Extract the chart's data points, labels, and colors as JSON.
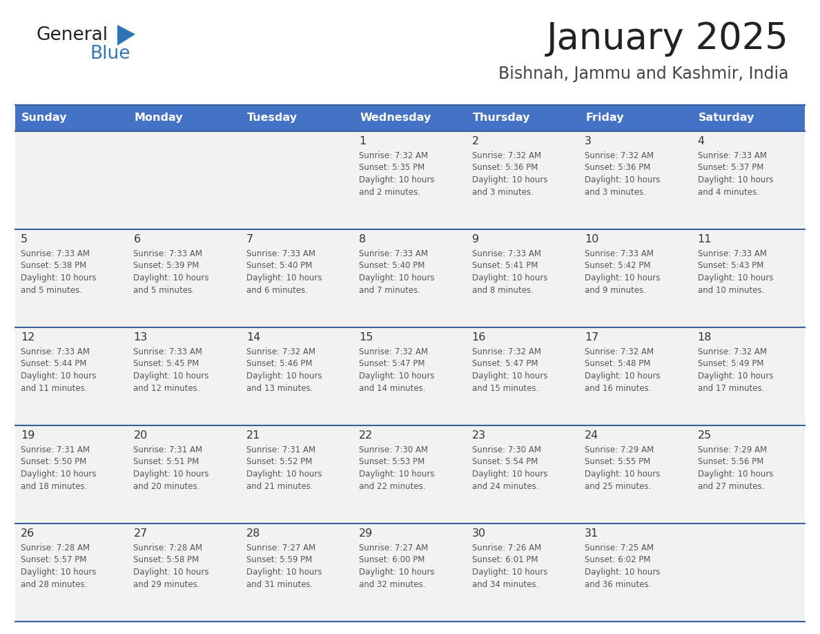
{
  "title": "January 2025",
  "subtitle": "Bishnah, Jammu and Kashmir, India",
  "days_of_week": [
    "Sunday",
    "Monday",
    "Tuesday",
    "Wednesday",
    "Thursday",
    "Friday",
    "Saturday"
  ],
  "header_bg": "#4472C4",
  "header_text": "#FFFFFF",
  "cell_bg": "#F2F2F2",
  "divider_color": "#3A5E9E",
  "title_color": "#222222",
  "subtitle_color": "#444444",
  "day_num_color": "#333333",
  "cell_text_color": "#555555",
  "logo_black": "#222222",
  "logo_blue": "#2E75B6",
  "triangle_color": "#2E75B6",
  "calendar_data": [
    [
      {
        "day": "",
        "sunrise": "",
        "sunset": "",
        "daylight": ""
      },
      {
        "day": "",
        "sunrise": "",
        "sunset": "",
        "daylight": ""
      },
      {
        "day": "",
        "sunrise": "",
        "sunset": "",
        "daylight": ""
      },
      {
        "day": "1",
        "sunrise": "Sunrise: 7:32 AM",
        "sunset": "Sunset: 5:35 PM",
        "daylight": "Daylight: 10 hours and 2 minutes."
      },
      {
        "day": "2",
        "sunrise": "Sunrise: 7:32 AM",
        "sunset": "Sunset: 5:36 PM",
        "daylight": "Daylight: 10 hours and 3 minutes."
      },
      {
        "day": "3",
        "sunrise": "Sunrise: 7:32 AM",
        "sunset": "Sunset: 5:36 PM",
        "daylight": "Daylight: 10 hours and 3 minutes."
      },
      {
        "day": "4",
        "sunrise": "Sunrise: 7:33 AM",
        "sunset": "Sunset: 5:37 PM",
        "daylight": "Daylight: 10 hours and 4 minutes."
      }
    ],
    [
      {
        "day": "5",
        "sunrise": "Sunrise: 7:33 AM",
        "sunset": "Sunset: 5:38 PM",
        "daylight": "Daylight: 10 hours and 5 minutes."
      },
      {
        "day": "6",
        "sunrise": "Sunrise: 7:33 AM",
        "sunset": "Sunset: 5:39 PM",
        "daylight": "Daylight: 10 hours and 5 minutes."
      },
      {
        "day": "7",
        "sunrise": "Sunrise: 7:33 AM",
        "sunset": "Sunset: 5:40 PM",
        "daylight": "Daylight: 10 hours and 6 minutes."
      },
      {
        "day": "8",
        "sunrise": "Sunrise: 7:33 AM",
        "sunset": "Sunset: 5:40 PM",
        "daylight": "Daylight: 10 hours and 7 minutes."
      },
      {
        "day": "9",
        "sunrise": "Sunrise: 7:33 AM",
        "sunset": "Sunset: 5:41 PM",
        "daylight": "Daylight: 10 hours and 8 minutes."
      },
      {
        "day": "10",
        "sunrise": "Sunrise: 7:33 AM",
        "sunset": "Sunset: 5:42 PM",
        "daylight": "Daylight: 10 hours and 9 minutes."
      },
      {
        "day": "11",
        "sunrise": "Sunrise: 7:33 AM",
        "sunset": "Sunset: 5:43 PM",
        "daylight": "Daylight: 10 hours and 10 minutes."
      }
    ],
    [
      {
        "day": "12",
        "sunrise": "Sunrise: 7:33 AM",
        "sunset": "Sunset: 5:44 PM",
        "daylight": "Daylight: 10 hours and 11 minutes."
      },
      {
        "day": "13",
        "sunrise": "Sunrise: 7:33 AM",
        "sunset": "Sunset: 5:45 PM",
        "daylight": "Daylight: 10 hours and 12 minutes."
      },
      {
        "day": "14",
        "sunrise": "Sunrise: 7:32 AM",
        "sunset": "Sunset: 5:46 PM",
        "daylight": "Daylight: 10 hours and 13 minutes."
      },
      {
        "day": "15",
        "sunrise": "Sunrise: 7:32 AM",
        "sunset": "Sunset: 5:47 PM",
        "daylight": "Daylight: 10 hours and 14 minutes."
      },
      {
        "day": "16",
        "sunrise": "Sunrise: 7:32 AM",
        "sunset": "Sunset: 5:47 PM",
        "daylight": "Daylight: 10 hours and 15 minutes."
      },
      {
        "day": "17",
        "sunrise": "Sunrise: 7:32 AM",
        "sunset": "Sunset: 5:48 PM",
        "daylight": "Daylight: 10 hours and 16 minutes."
      },
      {
        "day": "18",
        "sunrise": "Sunrise: 7:32 AM",
        "sunset": "Sunset: 5:49 PM",
        "daylight": "Daylight: 10 hours and 17 minutes."
      }
    ],
    [
      {
        "day": "19",
        "sunrise": "Sunrise: 7:31 AM",
        "sunset": "Sunset: 5:50 PM",
        "daylight": "Daylight: 10 hours and 18 minutes."
      },
      {
        "day": "20",
        "sunrise": "Sunrise: 7:31 AM",
        "sunset": "Sunset: 5:51 PM",
        "daylight": "Daylight: 10 hours and 20 minutes."
      },
      {
        "day": "21",
        "sunrise": "Sunrise: 7:31 AM",
        "sunset": "Sunset: 5:52 PM",
        "daylight": "Daylight: 10 hours and 21 minutes."
      },
      {
        "day": "22",
        "sunrise": "Sunrise: 7:30 AM",
        "sunset": "Sunset: 5:53 PM",
        "daylight": "Daylight: 10 hours and 22 minutes."
      },
      {
        "day": "23",
        "sunrise": "Sunrise: 7:30 AM",
        "sunset": "Sunset: 5:54 PM",
        "daylight": "Daylight: 10 hours and 24 minutes."
      },
      {
        "day": "24",
        "sunrise": "Sunrise: 7:29 AM",
        "sunset": "Sunset: 5:55 PM",
        "daylight": "Daylight: 10 hours and 25 minutes."
      },
      {
        "day": "25",
        "sunrise": "Sunrise: 7:29 AM",
        "sunset": "Sunset: 5:56 PM",
        "daylight": "Daylight: 10 hours and 27 minutes."
      }
    ],
    [
      {
        "day": "26",
        "sunrise": "Sunrise: 7:28 AM",
        "sunset": "Sunset: 5:57 PM",
        "daylight": "Daylight: 10 hours and 28 minutes."
      },
      {
        "day": "27",
        "sunrise": "Sunrise: 7:28 AM",
        "sunset": "Sunset: 5:58 PM",
        "daylight": "Daylight: 10 hours and 29 minutes."
      },
      {
        "day": "28",
        "sunrise": "Sunrise: 7:27 AM",
        "sunset": "Sunset: 5:59 PM",
        "daylight": "Daylight: 10 hours and 31 minutes."
      },
      {
        "day": "29",
        "sunrise": "Sunrise: 7:27 AM",
        "sunset": "Sunset: 6:00 PM",
        "daylight": "Daylight: 10 hours and 32 minutes."
      },
      {
        "day": "30",
        "sunrise": "Sunrise: 7:26 AM",
        "sunset": "Sunset: 6:01 PM",
        "daylight": "Daylight: 10 hours and 34 minutes."
      },
      {
        "day": "31",
        "sunrise": "Sunrise: 7:25 AM",
        "sunset": "Sunset: 6:02 PM",
        "daylight": "Daylight: 10 hours and 36 minutes."
      },
      {
        "day": "",
        "sunrise": "",
        "sunset": "",
        "daylight": ""
      }
    ]
  ]
}
